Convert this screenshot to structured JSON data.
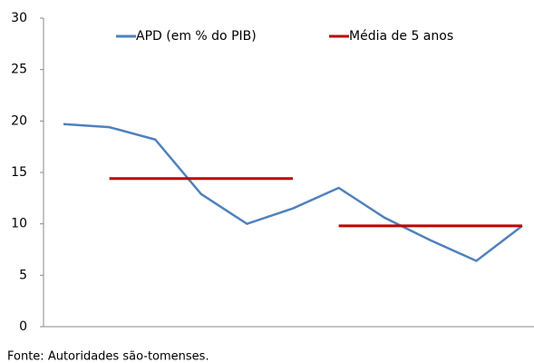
{
  "chart_data": {
    "type": "line",
    "categories": [
      null,
      null,
      null,
      null,
      null,
      null,
      null,
      null,
      null,
      null,
      null
    ],
    "series": [
      {
        "name": "APD (em % do PIB)",
        "color": "#4f81bd",
        "values": [
          19.7,
          19.4,
          18.2,
          12.9,
          10.0,
          11.5,
          13.5,
          10.6,
          8.4,
          6.4,
          9.8
        ]
      },
      {
        "name": "Média de 5 anos",
        "color": "#c00000",
        "values": [
          null,
          14.4,
          14.4,
          14.4,
          14.4,
          14.4,
          9.8,
          9.8,
          9.8,
          9.8,
          9.8
        ]
      }
    ],
    "ylim": [
      0,
      30
    ],
    "yticks": [
      0,
      5,
      10,
      15,
      20,
      25,
      30
    ],
    "grid": false,
    "legend": "top",
    "source": "Fonte: Autoridades são-tomenses."
  }
}
